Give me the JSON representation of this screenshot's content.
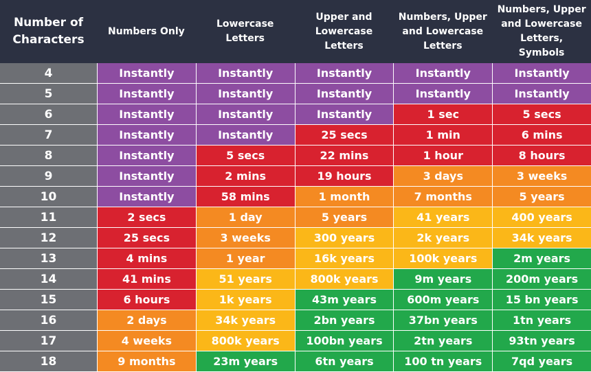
{
  "table": {
    "header": [
      "Number of Characters",
      "Numbers Only",
      "Lowercase Letters",
      "Upper and Lowercase Letters",
      "Numbers, Upper and Lowercase Letters",
      "Numbers, Upper and Lowercase Letters, Symbols"
    ],
    "rows": [
      [
        4,
        "Instantly",
        "Instantly",
        "Instantly",
        "Instantly",
        "Instantly"
      ],
      [
        5,
        "Instantly",
        "Instantly",
        "Instantly",
        "Instantly",
        "Instantly"
      ],
      [
        6,
        "Instantly",
        "Instantly",
        "Instantly",
        "1 sec",
        "5 secs"
      ],
      [
        7,
        "Instantly",
        "Instantly",
        "25 secs",
        "1 min",
        "6 mins"
      ],
      [
        8,
        "Instantly",
        "5 secs",
        "22 mins",
        "1 hour",
        "8 hours"
      ],
      [
        9,
        "Instantly",
        "2 mins",
        "19 hours",
        "3 days",
        "3 weeks"
      ],
      [
        10,
        "Instantly",
        "58 mins",
        "1 month",
        "7 months",
        "5 years"
      ],
      [
        11,
        "2 secs",
        "1 day",
        "5 years",
        "41 years",
        "400 years"
      ],
      [
        12,
        "25 secs",
        "3 weeks",
        "300 years",
        "2k years",
        "34k years"
      ],
      [
        13,
        "4 mins",
        "1 year",
        "16k years",
        "100k years",
        "2m years"
      ],
      [
        14,
        "41 mins",
        "51 years",
        "800k years",
        "9m years",
        "200m years"
      ],
      [
        15,
        "6 hours",
        "1k years",
        "43m years",
        "600m years",
        "15 bn years"
      ],
      [
        16,
        "2 days",
        "34k years",
        "2bn years",
        "37bn years",
        "1tn years"
      ],
      [
        17,
        "4 weeks",
        "800k years",
        "100bn years",
        "2tn years",
        "93tn years"
      ],
      [
        18,
        "9 months",
        "23m years",
        "6tn years",
        "100 tn years",
        "7qd years"
      ]
    ],
    "cell_colors": [
      [
        "#8d4da1",
        "#8d4da1",
        "#8d4da1",
        "#8d4da1",
        "#8d4da1"
      ],
      [
        "#8d4da1",
        "#8d4da1",
        "#8d4da1",
        "#8d4da1",
        "#8d4da1"
      ],
      [
        "#8d4da1",
        "#8d4da1",
        "#8d4da1",
        "#d8222f",
        "#d8222f"
      ],
      [
        "#8d4da1",
        "#8d4da1",
        "#d8222f",
        "#d8222f",
        "#d8222f"
      ],
      [
        "#8d4da1",
        "#d8222f",
        "#d8222f",
        "#d8222f",
        "#d8222f"
      ],
      [
        "#8d4da1",
        "#d8222f",
        "#d8222f",
        "#f48a22",
        "#f48a22"
      ],
      [
        "#8d4da1",
        "#d8222f",
        "#f48a22",
        "#f48a22",
        "#f48a22"
      ],
      [
        "#d8222f",
        "#f48a22",
        "#f48a22",
        "#fbb718",
        "#fbb718"
      ],
      [
        "#d8222f",
        "#f48a22",
        "#fbb718",
        "#fbb718",
        "#fbb718"
      ],
      [
        "#d8222f",
        "#f48a22",
        "#fbb718",
        "#fbb718",
        "#22a84b"
      ],
      [
        "#d8222f",
        "#fbb718",
        "#fbb718",
        "#22a84b",
        "#22a84b"
      ],
      [
        "#d8222f",
        "#fbb718",
        "#22a84b",
        "#22a84b",
        "#22a84b"
      ],
      [
        "#f48a22",
        "#fbb718",
        "#22a84b",
        "#22a84b",
        "#22a84b"
      ],
      [
        "#f48a22",
        "#fbb718",
        "#22a84b",
        "#22a84b",
        "#22a84b"
      ],
      [
        "#f48a22",
        "#22a84b",
        "#22a84b",
        "#22a84b",
        "#22a84b"
      ]
    ]
  }
}
